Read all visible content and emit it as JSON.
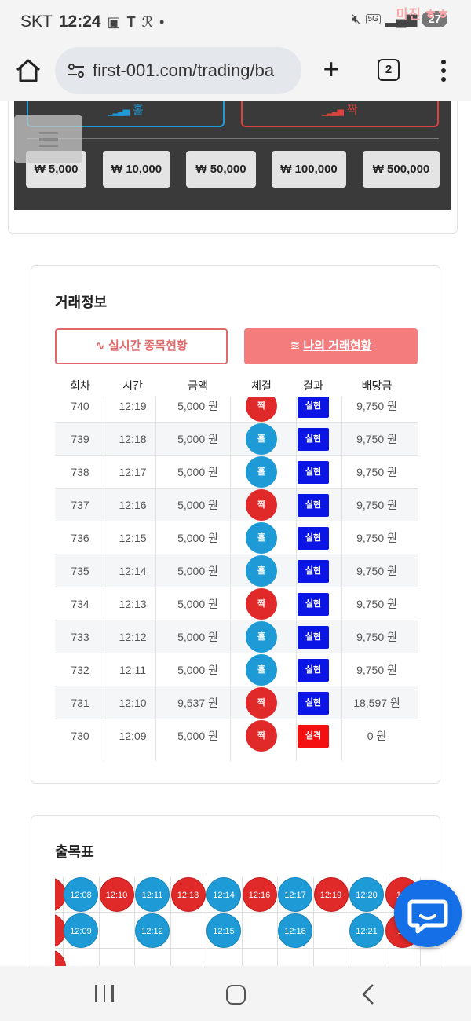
{
  "status_bar": {
    "carrier": "SKT",
    "time": "12:24",
    "network": "5G",
    "battery": "27",
    "watermark": "마진 ㅎㅎ"
  },
  "browser": {
    "url": "first-001.com/trading/ba",
    "tab_count": "2"
  },
  "bet_panel": {
    "odd_label": "홀",
    "even_label": "짝",
    "chips": [
      "₩ 5,000",
      "₩ 10,000",
      "₩ 50,000",
      "₩ 100,000",
      "₩ 500,000"
    ]
  },
  "trade_info": {
    "title": "거래정보",
    "live_button": "실시간 종목현황",
    "my_button": "나의 거래현황",
    "columns": [
      "회차",
      "시간",
      "금액",
      "체결",
      "결과",
      "배당금"
    ],
    "rows": [
      {
        "round": "740",
        "time": "12:19",
        "amount": "5,000 원",
        "pick": "짝",
        "result": "실현",
        "payout": "9,750 원"
      },
      {
        "round": "739",
        "time": "12:18",
        "amount": "5,000 원",
        "pick": "홀",
        "result": "실현",
        "payout": "9,750 원"
      },
      {
        "round": "738",
        "time": "12:17",
        "amount": "5,000 원",
        "pick": "홀",
        "result": "실현",
        "payout": "9,750 원"
      },
      {
        "round": "737",
        "time": "12:16",
        "amount": "5,000 원",
        "pick": "짝",
        "result": "실현",
        "payout": "9,750 원"
      },
      {
        "round": "736",
        "time": "12:15",
        "amount": "5,000 원",
        "pick": "홀",
        "result": "실현",
        "payout": "9,750 원"
      },
      {
        "round": "735",
        "time": "12:14",
        "amount": "5,000 원",
        "pick": "홀",
        "result": "실현",
        "payout": "9,750 원"
      },
      {
        "round": "734",
        "time": "12:13",
        "amount": "5,000 원",
        "pick": "짝",
        "result": "실현",
        "payout": "9,750 원"
      },
      {
        "round": "733",
        "time": "12:12",
        "amount": "5,000 원",
        "pick": "홀",
        "result": "실현",
        "payout": "9,750 원"
      },
      {
        "round": "732",
        "time": "12:11",
        "amount": "5,000 원",
        "pick": "홀",
        "result": "실현",
        "payout": "9,750 원"
      },
      {
        "round": "731",
        "time": "12:10",
        "amount": "9,537 원",
        "pick": "짝",
        "result": "실현",
        "payout": "18,597 원"
      },
      {
        "round": "730",
        "time": "12:09",
        "amount": "5,000 원",
        "pick": "짝",
        "result": "실격",
        "payout": "0 원"
      }
    ]
  },
  "history": {
    "title": "출목표",
    "columns": [
      {
        "cells": [
          {
            "t": "12:08",
            "k": "홀"
          },
          {
            "t": "12:09",
            "k": "홀"
          }
        ]
      },
      {
        "cells": [
          {
            "t": "12:10",
            "k": "짝"
          }
        ]
      },
      {
        "cells": [
          {
            "t": "12:11",
            "k": "홀"
          },
          {
            "t": "12:12",
            "k": "홀"
          }
        ]
      },
      {
        "cells": [
          {
            "t": "12:13",
            "k": "짝"
          }
        ]
      },
      {
        "cells": [
          {
            "t": "12:14",
            "k": "홀"
          },
          {
            "t": "12:15",
            "k": "홀"
          }
        ]
      },
      {
        "cells": [
          {
            "t": "12:16",
            "k": "짝"
          }
        ]
      },
      {
        "cells": [
          {
            "t": "12:17",
            "k": "홀"
          },
          {
            "t": "12:18",
            "k": "홀"
          }
        ]
      },
      {
        "cells": [
          {
            "t": "12:19",
            "k": "짝"
          }
        ]
      },
      {
        "cells": [
          {
            "t": "12:20",
            "k": "홀"
          },
          {
            "t": "12:21",
            "k": "홀"
          }
        ]
      },
      {
        "cells": [
          {
            "t": "12:",
            "k": "짝"
          },
          {
            "t": "12",
            "k": "짝"
          }
        ]
      }
    ]
  },
  "colors": {
    "odd": "#1e9bd7",
    "even": "#e02929",
    "win": "#0b16e6",
    "lose": "#f41010",
    "accent": "#f47c7c"
  }
}
